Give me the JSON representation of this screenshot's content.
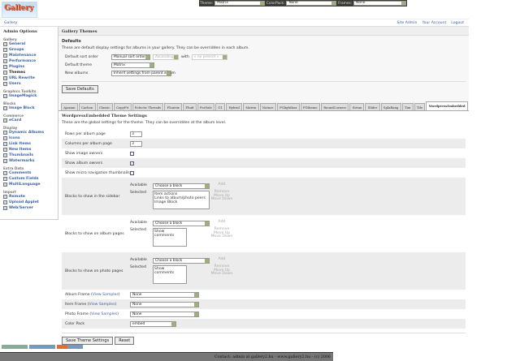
{
  "topbar": {
    "theme_label": "Theme:",
    "theme": "Matrix",
    "colorpack_label": "ColorPack:",
    "colorpack": "None",
    "frames_label": "Frames:",
    "frames": "None"
  },
  "logo": "Gallery",
  "breadcrumb": "Gallery",
  "toplinks": [
    "Site Admin",
    "Your Account",
    "Logout"
  ],
  "sidebar": {
    "title": "Admin Options",
    "groups": [
      {
        "name": "Gallery",
        "items": [
          "General",
          "Groups",
          "Maintenance",
          "Performance",
          "Plugins",
          "Themes",
          "URL Rewrite",
          "Users"
        ]
      },
      {
        "name": "Graphics Toolkits",
        "items": [
          "ImageMagick"
        ]
      },
      {
        "name": "Blocks",
        "items": [
          "Image Block"
        ]
      },
      {
        "name": "Commerce",
        "items": [
          "eCard"
        ]
      },
      {
        "name": "Display",
        "items": [
          "Dynamic Albums",
          "Icons",
          "Link Items",
          "New Items",
          "Thumbnails",
          "Watermarks"
        ]
      },
      {
        "name": "Extra Data",
        "items": [
          "Comments",
          "Custom Fields",
          "MultiLanguage"
        ]
      },
      {
        "name": "Import",
        "items": [
          "Remote",
          "Upload Applet",
          "Web/Server"
        ]
      }
    ],
    "current": "Themes"
  },
  "main": {
    "title": "Gallery Themes",
    "defaults_title": "Defaults",
    "defaults_desc": "These are default display settings for albums in your gallery. They can be overridden in each album.",
    "sort_label": "Default sort order",
    "sort": "Manual sort order",
    "sort_dir": "Ascending",
    "with_label": "with",
    "presort": "« no presort »",
    "theme_label": "Default theme",
    "theme": "Matrix",
    "new_albums_label": "New albums",
    "new_albums": "Inherit settings from parent album",
    "save_defaults": "Save Defaults",
    "tabs": [
      "Ajaxian",
      "Carbon",
      "Classic",
      "CopyFit",
      "Eclectic Threads",
      "Floatrix",
      "Fluid",
      "ForSale",
      "G1",
      "Hybrid",
      "Matrix",
      "Nature",
      "PGlightbox",
      "PGtheme",
      "RoundCorners",
      "Siriux",
      "Slider",
      "SplaBang",
      "Tim",
      "Tile",
      "WordpressEmbedded"
    ],
    "active_tab": "WordpressEmbedded",
    "settings_title": "WordpressEmbedded Theme Settings",
    "settings_desc": "These are the global settings for the theme. They can be overridden at the album level.",
    "rows_label": "Rows per album page",
    "rows": "3",
    "cols_label": "Columns per album page",
    "cols": "3",
    "image_owners_label": "Show image owners",
    "image_owners": false,
    "album_owners_label": "Show album owners",
    "album_owners": true,
    "micro_label": "Show micro navigation thumbnails",
    "micro": false,
    "available_label": "Available",
    "selected_label": "Selected",
    "choose": "Choose a block",
    "add": "Add",
    "remove": "Remove",
    "move_up": "Move Up",
    "move_down": "Move Down",
    "sidebar_blocks_label": "Blocks to show in the sidebar",
    "sidebar_blocks": [
      "Item actions",
      "Links to album/photo peers",
      "Image Block"
    ],
    "album_blocks_label": "Blocks to show on album pages",
    "album_blocks": [
      "Show comments"
    ],
    "photo_blocks_label": "Blocks to show on photo pages",
    "photo_blocks": [
      "Show comments"
    ],
    "album_frame_label": "Album Frame",
    "item_frame_label": "Item Frame",
    "photo_frame_label": "Photo Frame",
    "view_samples": "View Samples",
    "album_frame": "None",
    "item_frame": "None",
    "photo_frame": "None",
    "color_pack_label": "Color Pack",
    "color_pack": "embed",
    "save_theme": "Save Theme Settings",
    "reset": "Reset"
  },
  "footer": "Contact: admin at gallery2.hu - www.gallery2.hu - (c) 2006"
}
